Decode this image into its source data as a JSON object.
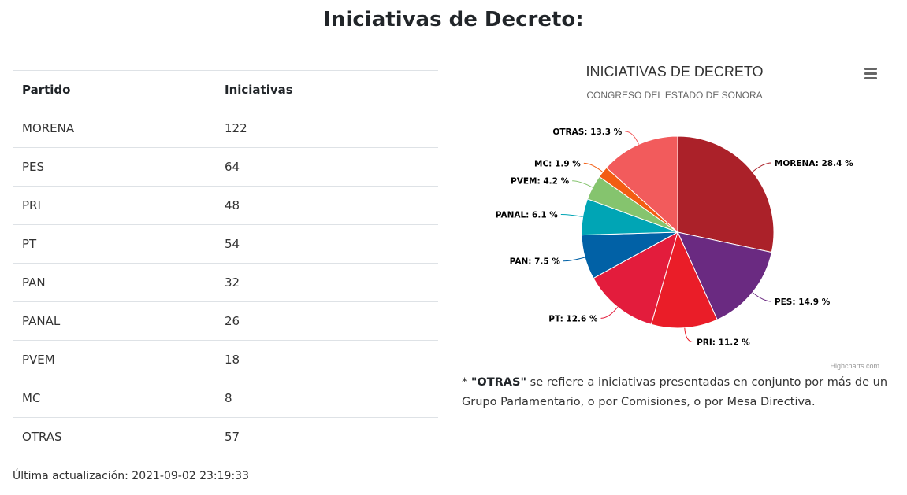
{
  "page": {
    "title": "Iniciativas de Decreto:",
    "updated": "Última actualización: 2021-09-02 23:19:33"
  },
  "table": {
    "headers": [
      "Partido",
      "Iniciativas"
    ],
    "rows": [
      [
        "MORENA",
        "122"
      ],
      [
        "PES",
        "64"
      ],
      [
        "PRI",
        "48"
      ],
      [
        "PT",
        "54"
      ],
      [
        "PAN",
        "32"
      ],
      [
        "PANAL",
        "26"
      ],
      [
        "PVEM",
        "18"
      ],
      [
        "MC",
        "8"
      ],
      [
        "OTRAS",
        "57"
      ]
    ]
  },
  "chart_data": {
    "type": "pie",
    "title": "INICIATIVAS DE DECRETO",
    "subtitle": "CONGRESO DEL ESTADO DE SONORA",
    "credits": "Highcharts.com",
    "slices": [
      {
        "label": "MORENA",
        "percent": 28.4,
        "color": "#ab2129",
        "text": "MORENA: 28.4 %"
      },
      {
        "label": "PES",
        "percent": 14.9,
        "color": "#6a2a81",
        "text": "PES: 14.9 %"
      },
      {
        "label": "PRI",
        "percent": 11.2,
        "color": "#ea1d28",
        "text": "PRI: 11.2 %"
      },
      {
        "label": "PT",
        "percent": 12.6,
        "color": "#e31c3c",
        "text": "PT: 12.6 %"
      },
      {
        "label": "PAN",
        "percent": 7.5,
        "color": "#0161a6",
        "text": "PAN: 7.5 %"
      },
      {
        "label": "PANAL",
        "percent": 6.1,
        "color": "#00a5b5",
        "text": "PANAL: 6.1 %"
      },
      {
        "label": "PVEM",
        "percent": 4.2,
        "color": "#85c46e",
        "text": "PVEM: 4.2 %"
      },
      {
        "label": "MC",
        "percent": 1.9,
        "color": "#f35d12",
        "text": "MC: 1.9 %"
      },
      {
        "label": "OTRAS",
        "percent": 13.3,
        "color": "#f25b5c",
        "text": "OTRAS: 13.3 %"
      }
    ]
  },
  "note": {
    "prefix": "* ",
    "bold": "\"OTRAS\"",
    "text": " se refiere a iniciativas presentadas en conjunto por más de un Grupo Parlamentario, o por Comisiones, o por Mesa Directiva."
  }
}
